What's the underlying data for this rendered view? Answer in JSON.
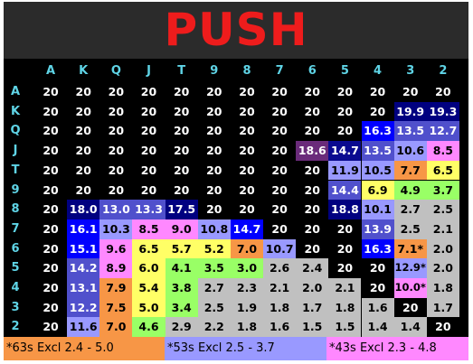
{
  "title": "PUSH",
  "columns": [
    "A",
    "K",
    "Q",
    "J",
    "T",
    "9",
    "8",
    "7",
    "6",
    "5",
    "4",
    "3",
    "2"
  ],
  "rows": [
    {
      "label": "A",
      "values": [
        "20",
        "20",
        "20",
        "20",
        "20",
        "20",
        "20",
        "20",
        "20",
        "20",
        "20",
        "20",
        "20"
      ]
    },
    {
      "label": "K",
      "values": [
        "20",
        "20",
        "20",
        "20",
        "20",
        "20",
        "20",
        "20",
        "20",
        "20",
        "20",
        "19.9",
        "19.3"
      ]
    },
    {
      "label": "Q",
      "values": [
        "20",
        "20",
        "20",
        "20",
        "20",
        "20",
        "20",
        "20",
        "20",
        "20",
        "16.3",
        "13.5",
        "12.7"
      ]
    },
    {
      "label": "J",
      "values": [
        "20",
        "20",
        "20",
        "20",
        "20",
        "20",
        "20",
        "20",
        "18.6",
        "14.7",
        "13.5",
        "10.6",
        "8.5"
      ]
    },
    {
      "label": "T",
      "values": [
        "20",
        "20",
        "20",
        "20",
        "20",
        "20",
        "20",
        "20",
        "20",
        "11.9",
        "10.5",
        "7.7",
        "6.5"
      ]
    },
    {
      "label": "9",
      "values": [
        "20",
        "20",
        "20",
        "20",
        "20",
        "20",
        "20",
        "20",
        "20",
        "14.4",
        "6.9",
        "4.9",
        "3.7"
      ]
    },
    {
      "label": "8",
      "values": [
        "20",
        "18.0",
        "13.0",
        "13.3",
        "17.5",
        "20",
        "20",
        "20",
        "20",
        "18.8",
        "10.1",
        "2.7",
        "2.5"
      ]
    },
    {
      "label": "7",
      "values": [
        "20",
        "16.1",
        "10.3",
        "8.5",
        "9.0",
        "10.8",
        "14.7",
        "20",
        "20",
        "20",
        "13.9",
        "2.5",
        "2.1"
      ]
    },
    {
      "label": "6",
      "values": [
        "20",
        "15.1",
        "9.6",
        "6.5",
        "5.7",
        "5.2",
        "7.0",
        "10.7",
        "20",
        "20",
        "16.3",
        "7.1*",
        "2.0"
      ]
    },
    {
      "label": "5",
      "values": [
        "20",
        "14.2",
        "8.9",
        "6.0",
        "4.1",
        "3.5",
        "3.0",
        "2.6",
        "2.4",
        "20",
        "20",
        "12.9*",
        "2.0"
      ]
    },
    {
      "label": "4",
      "values": [
        "20",
        "13.1",
        "7.9",
        "5.4",
        "3.8",
        "2.7",
        "2.3",
        "2.1",
        "2.0",
        "2.1",
        "20",
        "10.0*",
        "1.8"
      ]
    },
    {
      "label": "3",
      "values": [
        "20",
        "12.2",
        "7.5",
        "5.0",
        "3.4",
        "2.5",
        "1.9",
        "1.8",
        "1.7",
        "1.8",
        "1.6",
        "20",
        "1.7"
      ]
    },
    {
      "label": "2",
      "values": [
        "20",
        "11.6",
        "7.0",
        "4.6",
        "2.9",
        "2.2",
        "1.8",
        "1.6",
        "1.5",
        "1.5",
        "1.4",
        "1.4",
        "20"
      ]
    }
  ],
  "legend": [
    {
      "text": "*63s Excl 2.4 - 5.0",
      "color": "#f79646"
    },
    {
      "text": "*53s Excl 2.5 - 3.7",
      "color": "#9999ff"
    },
    {
      "text": "*43s Excl 2.3 - 4.8",
      "color": "#ff88ff"
    }
  ],
  "colors": {
    "title": "#ee1c1c",
    "header_text": "#5fd4e6",
    "background": "#000000"
  }
}
